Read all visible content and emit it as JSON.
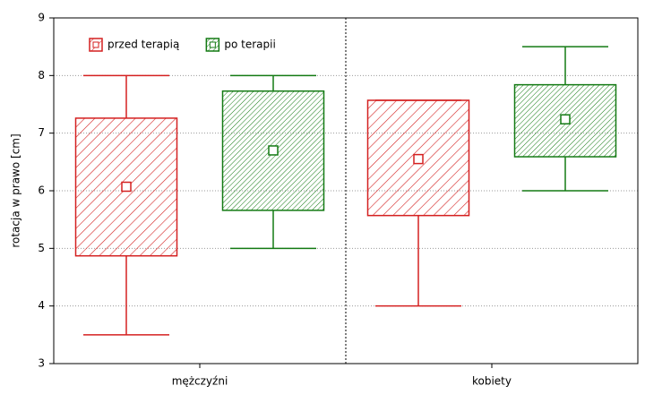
{
  "chart_data": {
    "type": "box",
    "y_label": "rotacja w prawo [cm]",
    "categories": [
      "mężczyźni",
      "kobiety"
    ],
    "ylim": [
      3,
      9
    ],
    "yticks": [
      3,
      4,
      5,
      6,
      7,
      8,
      9
    ],
    "grid": true,
    "legend": "top-left",
    "series": [
      {
        "name": "przed terapią",
        "color": "#d42020",
        "whisker_low": [
          3.5,
          4.0
        ],
        "box_low": [
          4.87,
          5.57
        ],
        "mean": [
          6.07,
          6.55
        ],
        "box_high": [
          7.26,
          7.57
        ],
        "whisker_high": [
          8.0,
          7.57
        ]
      },
      {
        "name": "po terapii",
        "color": "#137a13",
        "whisker_low": [
          5.0,
          6.0
        ],
        "box_low": [
          5.66,
          6.59
        ],
        "mean": [
          6.7,
          7.24
        ],
        "box_high": [
          7.73,
          7.84
        ],
        "whisker_high": [
          8.0,
          8.5
        ]
      }
    ]
  }
}
